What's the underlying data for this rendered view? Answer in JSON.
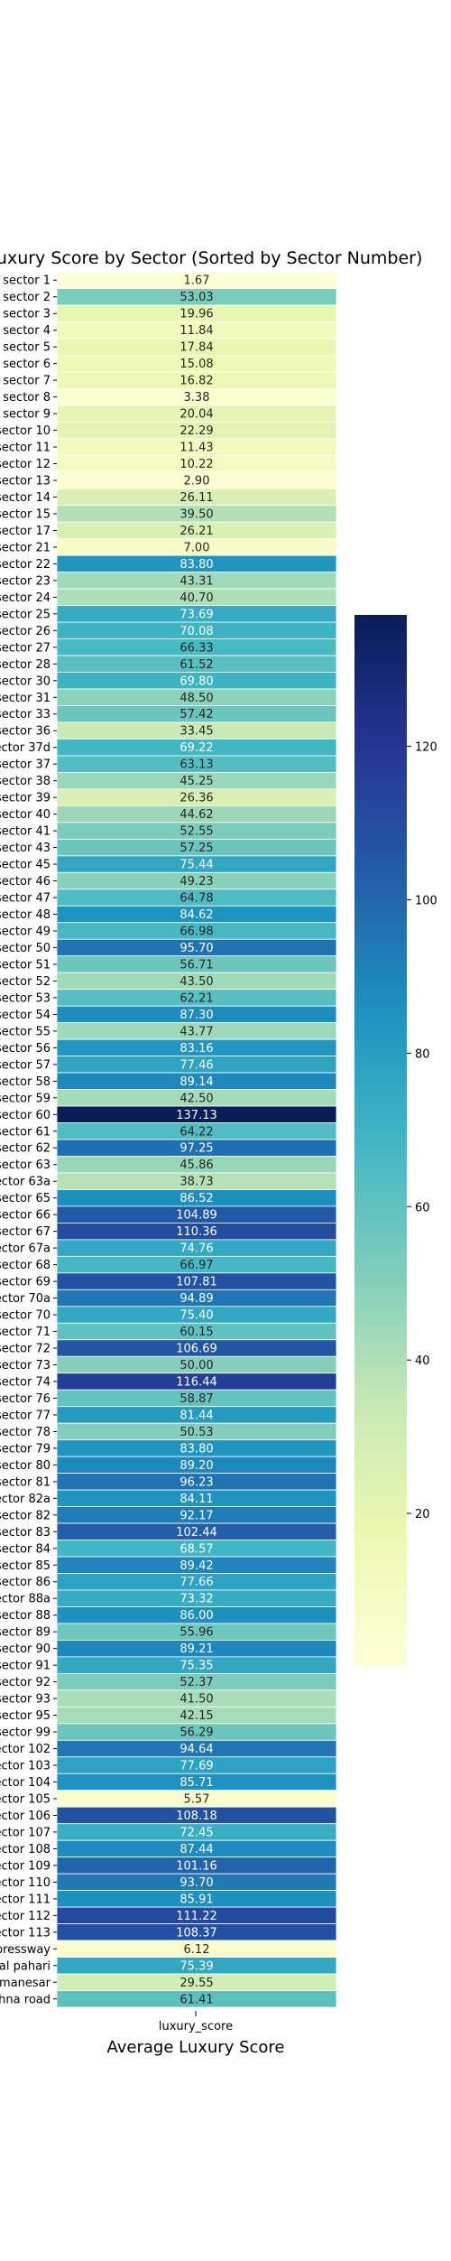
{
  "chart_data": {
    "type": "heatmap",
    "title": "Average Luxury Score by Sector (Sorted by Sector Number)",
    "xlabel": "Average Luxury Score",
    "ylabel": "",
    "column_label": "luxury_score",
    "colormap": "YlGnBu",
    "vmin": 0,
    "vmax": 137.13,
    "colorbar_ticks": [
      20,
      40,
      60,
      80,
      100,
      120
    ],
    "rows": [
      {
        "sector": "sector 1",
        "value": 1.67
      },
      {
        "sector": "sector 2",
        "value": 53.03
      },
      {
        "sector": "sector 3",
        "value": 19.96
      },
      {
        "sector": "sector 4",
        "value": 11.84
      },
      {
        "sector": "sector 5",
        "value": 17.84
      },
      {
        "sector": "sector 6",
        "value": 15.08
      },
      {
        "sector": "sector 7",
        "value": 16.82
      },
      {
        "sector": "sector 8",
        "value": 3.38
      },
      {
        "sector": "sector 9",
        "value": 20.04
      },
      {
        "sector": "sector 10",
        "value": 22.29
      },
      {
        "sector": "sector 11",
        "value": 11.43
      },
      {
        "sector": "sector 12",
        "value": 10.22
      },
      {
        "sector": "sector 13",
        "value": 2.9
      },
      {
        "sector": "sector 14",
        "value": 26.11
      },
      {
        "sector": "sector 15",
        "value": 39.5
      },
      {
        "sector": "sector 17",
        "value": 26.21
      },
      {
        "sector": "sector 21",
        "value": 7.0
      },
      {
        "sector": "sector 22",
        "value": 83.8
      },
      {
        "sector": "sector 23",
        "value": 43.31
      },
      {
        "sector": "sector 24",
        "value": 40.7
      },
      {
        "sector": "sector 25",
        "value": 73.69
      },
      {
        "sector": "sector 26",
        "value": 70.08
      },
      {
        "sector": "sector 27",
        "value": 66.33
      },
      {
        "sector": "sector 28",
        "value": 61.52
      },
      {
        "sector": "sector 30",
        "value": 69.8
      },
      {
        "sector": "sector 31",
        "value": 48.5
      },
      {
        "sector": "sector 33",
        "value": 57.42
      },
      {
        "sector": "sector 36",
        "value": 33.45
      },
      {
        "sector": "sector 37d",
        "value": 69.22
      },
      {
        "sector": "sector 37",
        "value": 63.13
      },
      {
        "sector": "sector 38",
        "value": 45.25
      },
      {
        "sector": "sector 39",
        "value": 26.36
      },
      {
        "sector": "sector 40",
        "value": 44.62
      },
      {
        "sector": "sector 41",
        "value": 52.55
      },
      {
        "sector": "sector 43",
        "value": 57.25
      },
      {
        "sector": "sector 45",
        "value": 75.44
      },
      {
        "sector": "sector 46",
        "value": 49.23
      },
      {
        "sector": "sector 47",
        "value": 64.78
      },
      {
        "sector": "sector 48",
        "value": 84.62
      },
      {
        "sector": "sector 49",
        "value": 66.98
      },
      {
        "sector": "sector 50",
        "value": 95.7
      },
      {
        "sector": "sector 51",
        "value": 56.71
      },
      {
        "sector": "sector 52",
        "value": 43.5
      },
      {
        "sector": "sector 53",
        "value": 62.21
      },
      {
        "sector": "sector 54",
        "value": 87.3
      },
      {
        "sector": "sector 55",
        "value": 43.77
      },
      {
        "sector": "sector 56",
        "value": 83.16
      },
      {
        "sector": "sector 57",
        "value": 77.46
      },
      {
        "sector": "sector 58",
        "value": 89.14
      },
      {
        "sector": "sector 59",
        "value": 42.5
      },
      {
        "sector": "sector 60",
        "value": 137.13
      },
      {
        "sector": "sector 61",
        "value": 64.22
      },
      {
        "sector": "sector 62",
        "value": 97.25
      },
      {
        "sector": "sector 63",
        "value": 45.86
      },
      {
        "sector": "sector 63a",
        "value": 38.73
      },
      {
        "sector": "sector 65",
        "value": 86.52
      },
      {
        "sector": "sector 66",
        "value": 104.89
      },
      {
        "sector": "sector 67",
        "value": 110.36
      },
      {
        "sector": "sector 67a",
        "value": 74.76
      },
      {
        "sector": "sector 68",
        "value": 66.97
      },
      {
        "sector": "sector 69",
        "value": 107.81
      },
      {
        "sector": "sector 70a",
        "value": 94.89
      },
      {
        "sector": "sector 70",
        "value": 75.4
      },
      {
        "sector": "sector 71",
        "value": 60.15
      },
      {
        "sector": "sector 72",
        "value": 106.69
      },
      {
        "sector": "sector 73",
        "value": 50.0
      },
      {
        "sector": "sector 74",
        "value": 116.44
      },
      {
        "sector": "sector 76",
        "value": 58.87
      },
      {
        "sector": "sector 77",
        "value": 81.44
      },
      {
        "sector": "sector 78",
        "value": 50.53
      },
      {
        "sector": "sector 79",
        "value": 83.8
      },
      {
        "sector": "sector 80",
        "value": 89.2
      },
      {
        "sector": "sector 81",
        "value": 96.23
      },
      {
        "sector": "sector 82a",
        "value": 84.11
      },
      {
        "sector": "sector 82",
        "value": 92.17
      },
      {
        "sector": "sector 83",
        "value": 102.44
      },
      {
        "sector": "sector 84",
        "value": 68.57
      },
      {
        "sector": "sector 85",
        "value": 89.42
      },
      {
        "sector": "sector 86",
        "value": 77.66
      },
      {
        "sector": "sector 88a",
        "value": 73.32
      },
      {
        "sector": "sector 88",
        "value": 86.0
      },
      {
        "sector": "sector 89",
        "value": 55.96
      },
      {
        "sector": "sector 90",
        "value": 89.21
      },
      {
        "sector": "sector 91",
        "value": 75.35
      },
      {
        "sector": "sector 92",
        "value": 52.37
      },
      {
        "sector": "sector 93",
        "value": 41.5
      },
      {
        "sector": "sector 95",
        "value": 42.15
      },
      {
        "sector": "sector 99",
        "value": 56.29
      },
      {
        "sector": "sector 102",
        "value": 94.64
      },
      {
        "sector": "sector 103",
        "value": 77.69
      },
      {
        "sector": "sector 104",
        "value": 85.71
      },
      {
        "sector": "sector 105",
        "value": 5.57
      },
      {
        "sector": "sector 106",
        "value": 108.18
      },
      {
        "sector": "sector 107",
        "value": 72.45
      },
      {
        "sector": "sector 108",
        "value": 87.44
      },
      {
        "sector": "sector 109",
        "value": 101.16
      },
      {
        "sector": "sector 110",
        "value": 93.7
      },
      {
        "sector": "sector 111",
        "value": 85.91
      },
      {
        "sector": "sector 112",
        "value": 111.22
      },
      {
        "sector": "sector 113",
        "value": 108.37
      },
      {
        "sector": "dwarka expressway",
        "value": 6.12
      },
      {
        "sector": "gwal pahari",
        "value": 75.39
      },
      {
        "sector": "manesar",
        "value": 29.55
      },
      {
        "sector": "sohna road",
        "value": 61.41
      }
    ]
  }
}
